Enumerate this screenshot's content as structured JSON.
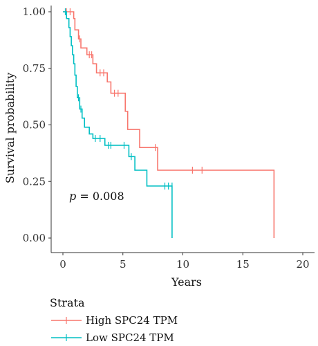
{
  "chart_data": {
    "type": "line",
    "title": "",
    "xlabel": "Years",
    "ylabel": "Survival probability",
    "xlim": [
      0,
      20
    ],
    "ylim": [
      0,
      1
    ],
    "x_ticks": [
      "0",
      "5",
      "10",
      "15",
      "20"
    ],
    "y_ticks": [
      "0.00",
      "0.25",
      "0.50",
      "0.75",
      "1.00"
    ],
    "annotation": {
      "p_symbol": "p",
      "p_rest": " = 0.008"
    },
    "legend": {
      "title": "Strata",
      "placement": "bottom-left"
    },
    "series": [
      {
        "name": "High SPC24 TPM",
        "color": "#F8766D",
        "steps": [
          [
            0,
            1.0
          ],
          [
            0.9,
            0.97
          ],
          [
            1.0,
            0.92
          ],
          [
            1.3,
            0.88
          ],
          [
            1.5,
            0.84
          ],
          [
            2.0,
            0.81
          ],
          [
            2.5,
            0.77
          ],
          [
            2.8,
            0.73
          ],
          [
            3.7,
            0.69
          ],
          [
            4.0,
            0.64
          ],
          [
            5.2,
            0.56
          ],
          [
            5.4,
            0.48
          ],
          [
            6.4,
            0.4
          ],
          [
            7.9,
            0.3
          ],
          [
            17.6,
            0.0
          ]
        ],
        "end_x": 17.6,
        "censors": [
          [
            0.3,
            1.0
          ],
          [
            0.6,
            1.0
          ],
          [
            1.4,
            0.88
          ],
          [
            2.2,
            0.81
          ],
          [
            2.4,
            0.81
          ],
          [
            3.1,
            0.73
          ],
          [
            3.4,
            0.73
          ],
          [
            4.3,
            0.64
          ],
          [
            4.6,
            0.64
          ],
          [
            7.7,
            0.4
          ],
          [
            10.8,
            0.3
          ],
          [
            11.6,
            0.3
          ]
        ]
      },
      {
        "name": "Low SPC24 TPM",
        "color": "#00BFC4",
        "steps": [
          [
            0,
            1.0
          ],
          [
            0.3,
            0.97
          ],
          [
            0.5,
            0.93
          ],
          [
            0.6,
            0.89
          ],
          [
            0.7,
            0.85
          ],
          [
            0.8,
            0.81
          ],
          [
            0.9,
            0.77
          ],
          [
            1.0,
            0.72
          ],
          [
            1.1,
            0.67
          ],
          [
            1.2,
            0.62
          ],
          [
            1.4,
            0.57
          ],
          [
            1.6,
            0.53
          ],
          [
            1.8,
            0.49
          ],
          [
            2.2,
            0.46
          ],
          [
            2.5,
            0.44
          ],
          [
            3.5,
            0.41
          ],
          [
            5.5,
            0.36
          ],
          [
            6.0,
            0.3
          ],
          [
            7.0,
            0.23
          ],
          [
            9.1,
            0.0
          ]
        ],
        "end_x": 9.1,
        "censors": [
          [
            0.2,
            1.0
          ],
          [
            1.3,
            0.62
          ],
          [
            1.5,
            0.57
          ],
          [
            2.7,
            0.44
          ],
          [
            3.1,
            0.44
          ],
          [
            3.8,
            0.41
          ],
          [
            4.0,
            0.41
          ],
          [
            5.1,
            0.41
          ],
          [
            5.7,
            0.36
          ],
          [
            8.5,
            0.23
          ],
          [
            8.8,
            0.23
          ],
          [
            9.1,
            0.23
          ]
        ]
      }
    ]
  }
}
